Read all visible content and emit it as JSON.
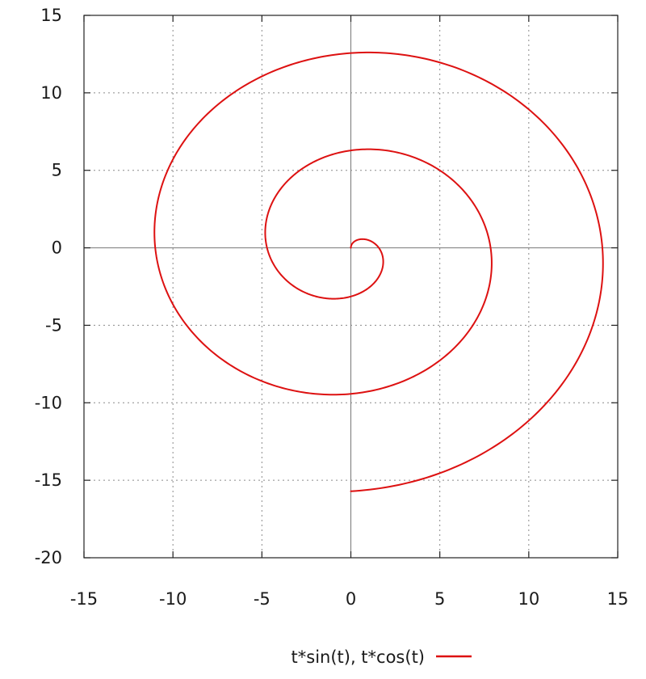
{
  "chart_data": {
    "type": "line",
    "title": "",
    "xlabel": "",
    "ylabel": "",
    "xlim": [
      -15,
      15
    ],
    "ylim": [
      -20,
      15
    ],
    "xticks": [
      -15,
      -10,
      -5,
      0,
      5,
      10,
      15
    ],
    "yticks": [
      -20,
      -15,
      -10,
      -5,
      0,
      5,
      10,
      15
    ],
    "grid": true,
    "zero_axes": true,
    "legend_position": "bottom-center",
    "series": [
      {
        "name": "t*sin(t), t*cos(t)",
        "color": "#dd1111",
        "equation": {
          "x": "t*sin(t)",
          "y": "t*cos(t)"
        },
        "t_range": [
          0,
          15.708
        ],
        "points": [
          [
            0.0,
            0.0
          ],
          [
            0.69,
            0.52
          ],
          [
            1.4,
            0.49
          ],
          [
            1.68,
            -0.7
          ],
          [
            1.15,
            -2.21
          ],
          [
            0.36,
            -3.14
          ],
          [
            -1.65,
            -3.36
          ],
          [
            -3.15,
            -2.13
          ],
          [
            -4.75,
            0.54
          ],
          [
            -3.96,
            3.76
          ],
          [
            0.0,
            6.28
          ],
          [
            4.56,
            5.45
          ],
          [
            7.92,
            1.9
          ],
          [
            7.52,
            -3.5
          ],
          [
            3.22,
            -8.29
          ],
          [
            0.0,
            -9.42
          ],
          [
            -5.79,
            -7.45
          ],
          [
            -10.03,
            -3.12
          ],
          [
            -10.68,
            2.61
          ],
          [
            -6.7,
            9.98
          ],
          [
            0.0,
            12.57
          ],
          [
            6.13,
            11.51
          ],
          [
            12.03,
            6.07
          ],
          [
            14.09,
            -0.3
          ],
          [
            11.09,
            -8.09
          ],
          [
            4.17,
            -14.59
          ],
          [
            0.0,
            -15.71
          ]
        ]
      }
    ]
  }
}
